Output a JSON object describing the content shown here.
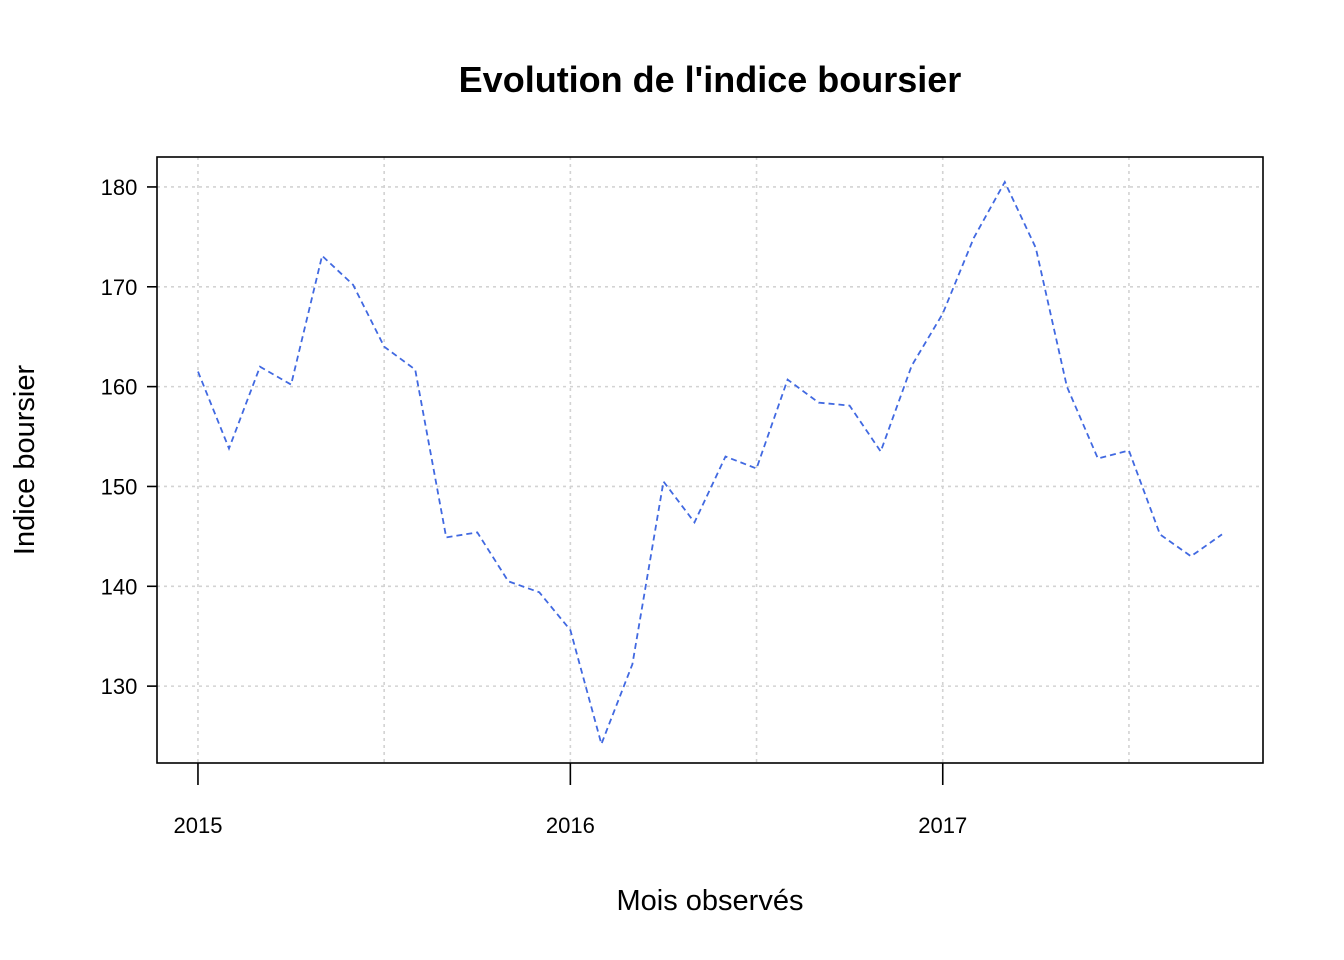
{
  "chart_data": {
    "type": "line",
    "title": "Evolution de l'indice boursier",
    "xlabel": "Mois observés",
    "ylabel": "Indice boursier",
    "x_ticks": [
      {
        "value": 2015.0,
        "label": "2015"
      },
      {
        "value": 2016.0,
        "label": "2016"
      },
      {
        "value": 2017.0,
        "label": "2017"
      }
    ],
    "x_minor_grid": [
      2015.5,
      2016.5,
      2017.5
    ],
    "y_ticks": [
      130,
      140,
      150,
      160,
      170,
      180
    ],
    "xlim": [
      2014.89,
      2017.86
    ],
    "ylim": [
      122.3,
      183
    ],
    "grid": true,
    "series": [
      {
        "color": "#4169e1",
        "line_style": "dashed",
        "x": [
          2015.0,
          2015.0833,
          2015.1667,
          2015.25,
          2015.3333,
          2015.4167,
          2015.5,
          2015.5833,
          2015.6667,
          2015.75,
          2015.8333,
          2015.9167,
          2016.0,
          2016.0833,
          2016.1667,
          2016.25,
          2016.3333,
          2016.4167,
          2016.5,
          2016.5833,
          2016.6667,
          2016.75,
          2016.8333,
          2016.9167,
          2017.0,
          2017.0833,
          2017.1667,
          2017.25,
          2017.3333,
          2017.4167,
          2017.5,
          2017.5833,
          2017.6667,
          2017.75
        ],
        "values": [
          161.5,
          153.8,
          162.0,
          160.2,
          173.1,
          170.2,
          164.0,
          161.7,
          144.9,
          145.4,
          140.5,
          139.4,
          135.6,
          124.2,
          132.2,
          150.5,
          146.4,
          153.0,
          151.8,
          160.7,
          158.4,
          158.1,
          153.5,
          162.1,
          167.3,
          174.9,
          180.5,
          173.9,
          160.0,
          152.8,
          153.6,
          145.2,
          143.0,
          145.2
        ]
      }
    ]
  }
}
